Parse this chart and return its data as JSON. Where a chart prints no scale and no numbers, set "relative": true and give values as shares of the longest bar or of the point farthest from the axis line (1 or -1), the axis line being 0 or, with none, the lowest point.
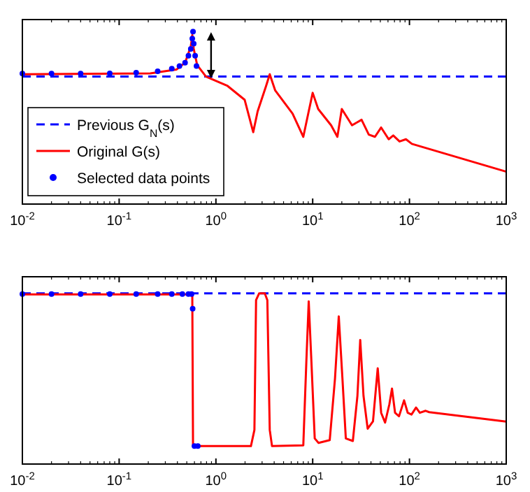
{
  "chart_data": [
    {
      "type": "line",
      "relative": true,
      "log": "x",
      "xlim": [
        0.01,
        1000
      ],
      "xticks": [
        {
          "value": 0.01,
          "label": "10$^{-2}$"
        },
        {
          "value": 0.1,
          "label": "10$^{-1}$"
        },
        {
          "value": 1,
          "label": "10$^{0}$"
        },
        {
          "value": 10,
          "label": "10$^{1}$"
        },
        {
          "value": 100,
          "label": "10$^{2}$"
        },
        {
          "value": 1000,
          "label": "10$^{3}$"
        }
      ],
      "grid": false,
      "legend": "bottom left",
      "series": [
        {
          "name": "Previous G$_{N}$(s)",
          "color": "#0000ff",
          "line_style": "dashed",
          "x": [
            0.01,
            1000
          ],
          "values": [
            0.74,
            0.74
          ]
        },
        {
          "name": "Original G(s)",
          "color": "#ff0000",
          "line_style": "solid",
          "x": [
            0.01,
            0.21,
            0.39,
            0.48,
            0.55,
            0.57,
            0.59,
            0.64,
            0.79,
            1.32,
            1.98,
            2.43,
            2.7,
            3.3,
            3.6,
            4.1,
            6.2,
            8.0,
            9.1,
            10,
            11.4,
            15.5,
            18,
            20,
            25.5,
            32,
            38,
            44,
            51,
            61,
            68,
            79,
            92,
            106,
            1000
          ],
          "values": [
            0.753,
            0.758,
            0.78,
            0.82,
            0.914,
            0.98,
            0.9,
            0.806,
            0.739,
            0.685,
            0.605,
            0.417,
            0.538,
            0.685,
            0.753,
            0.659,
            0.524,
            0.39,
            0.538,
            0.645,
            0.551,
            0.457,
            0.39,
            0.551,
            0.457,
            0.489,
            0.403,
            0.39,
            0.444,
            0.376,
            0.398,
            0.363,
            0.376,
            0.349,
            0.188
          ]
        },
        {
          "name": "Selected data points",
          "type": "scatter",
          "color": "#0000ff",
          "marker": "circle",
          "x": [
            0.01,
            0.02,
            0.04,
            0.08,
            0.15,
            0.25,
            0.35,
            0.42,
            0.48,
            0.52,
            0.55,
            0.57,
            0.58,
            0.59,
            0.61,
            0.63
          ],
          "values": [
            0.757,
            0.757,
            0.757,
            0.758,
            0.762,
            0.77,
            0.785,
            0.8,
            0.82,
            0.86,
            0.9,
            0.96,
            1.0,
            0.93,
            0.86,
            0.8
          ]
        }
      ]
    },
    {
      "type": "line",
      "relative": true,
      "log": "x",
      "xlim": [
        0.01,
        1000
      ],
      "xticks": [
        {
          "value": 0.01,
          "label": "10$^{-2}$"
        },
        {
          "value": 0.1,
          "label": "10$^{-1}$"
        },
        {
          "value": 1,
          "label": "10$^{0}$"
        },
        {
          "value": 10,
          "label": "10$^{1}$"
        },
        {
          "value": 100,
          "label": "10$^{2}$"
        },
        {
          "value": 1000,
          "label": "10$^{3}$"
        }
      ],
      "grid": false,
      "legend": false,
      "series": [
        {
          "color": "#0000ff",
          "line_style": "dashed",
          "x": [
            0.01,
            1000
          ],
          "values": [
            1.0,
            1.0
          ]
        },
        {
          "color": "#ff0000",
          "line_style": "solid",
          "x": [
            0.01,
            0.5,
            0.57,
            0.58,
            2.3,
            2.5,
            2.6,
            2.8,
            3.2,
            3.4,
            3.6,
            3.8,
            8.0,
            8.6,
            9.1,
            9.7,
            10.5,
            11.5,
            15,
            17,
            18.6,
            20.3,
            22,
            26,
            29,
            31,
            33.5,
            37,
            42,
            47,
            51,
            56,
            62,
            66,
            71,
            78,
            88,
            96,
            105,
            117,
            128,
            147,
            160,
            1000
          ],
          "values": [
            0.994,
            0.994,
            0.994,
            0.105,
            0.105,
            0.2,
            0.96,
            1.0,
            1.0,
            0.96,
            0.2,
            0.105,
            0.11,
            0.6,
            0.953,
            0.6,
            0.15,
            0.124,
            0.14,
            0.5,
            0.865,
            0.5,
            0.15,
            0.135,
            0.4,
            0.727,
            0.4,
            0.207,
            0.25,
            0.561,
            0.3,
            0.243,
            0.35,
            0.442,
            0.3,
            0.28,
            0.373,
            0.3,
            0.29,
            0.331,
            0.3,
            0.312,
            0.304,
            0.249
          ]
        },
        {
          "type": "scatter",
          "color": "#0000ff",
          "marker": "circle",
          "x": [
            0.01,
            0.02,
            0.04,
            0.08,
            0.15,
            0.25,
            0.35,
            0.45,
            0.52,
            0.56,
            0.575,
            0.6,
            0.65
          ],
          "values": [
            0.996,
            0.996,
            0.996,
            0.996,
            0.996,
            0.996,
            0.996,
            0.996,
            0.996,
            0.996,
            0.91,
            0.105,
            0.105
          ]
        }
      ]
    }
  ]
}
